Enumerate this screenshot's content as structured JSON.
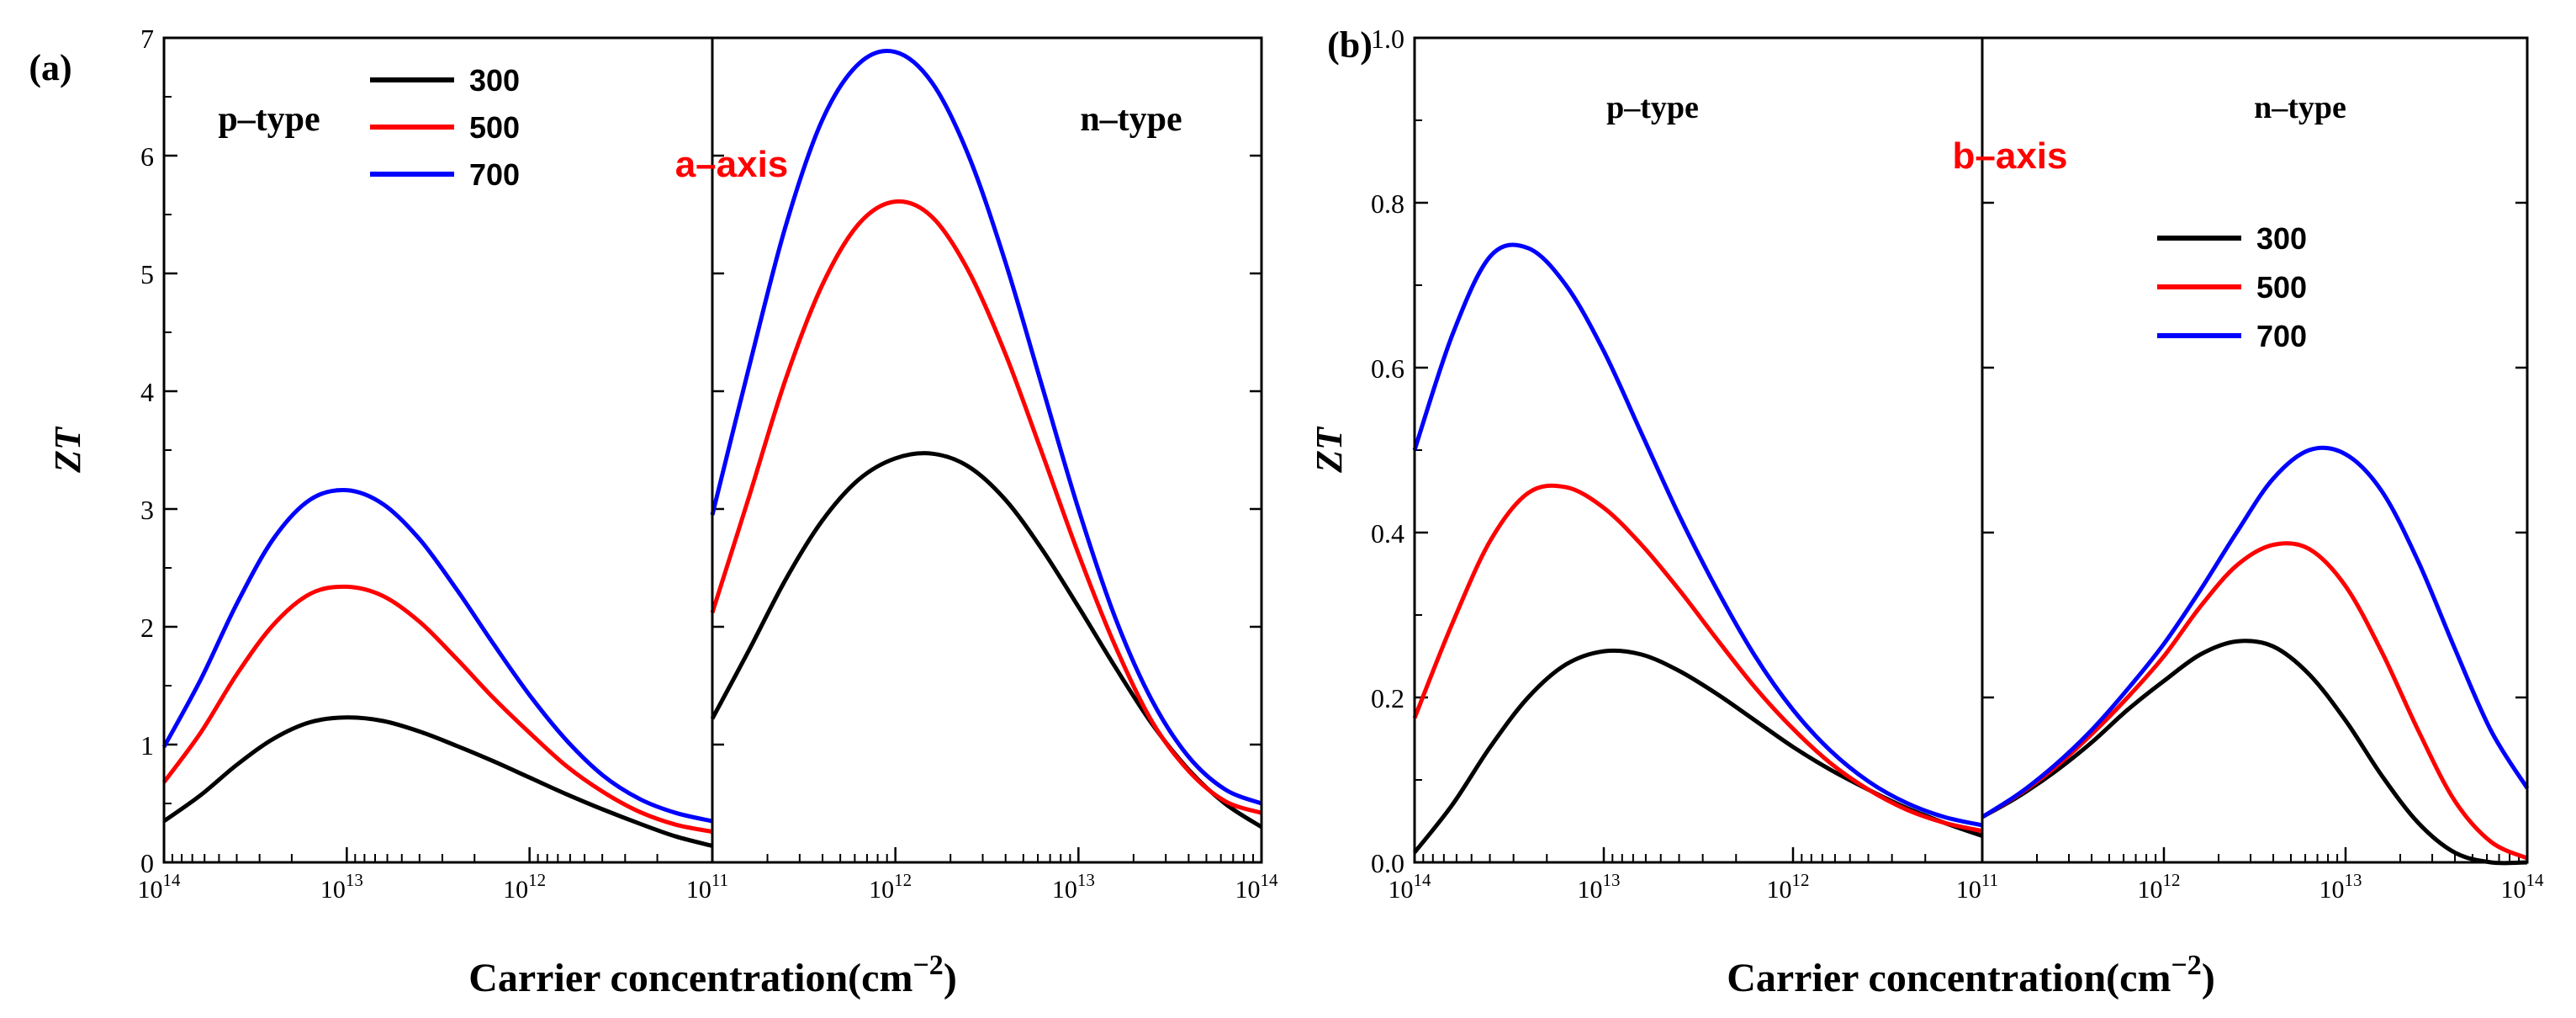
{
  "figure": {
    "panel_a_label": "(a)",
    "panel_b_label": "(b)"
  },
  "chart_data": [
    {
      "type": "line",
      "panel": "(a)",
      "axis_annotation": "a–axis",
      "ylabel": "ZT",
      "xlabel": "Carrier concentration(cm",
      "xlabel_sup": "−2",
      "ylim": [
        0,
        7
      ],
      "yticks": [
        "0",
        "1",
        "2",
        "3",
        "4",
        "5",
        "6",
        "7"
      ],
      "xscale": "log",
      "legend": {
        "placement": "top-left",
        "entries": [
          "300",
          "500",
          "700"
        ]
      },
      "subpanels": [
        {
          "label": "p–type",
          "xticks": [
            {
              "base": "10",
              "exp": "14"
            },
            {
              "base": "10",
              "exp": "13"
            },
            {
              "base": "10",
              "exp": "12"
            },
            {
              "base": "10",
              "exp": "11"
            }
          ],
          "series": [
            {
              "name": "300",
              "color": "#000000",
              "x": [
                0,
                0.2,
                0.4,
                0.6,
                0.8,
                1.0,
                1.2,
                1.4,
                1.6,
                1.8,
                2.0,
                2.2,
                2.4,
                2.6,
                2.8,
                3.0
              ],
              "y": [
                0.35,
                0.57,
                0.83,
                1.05,
                1.19,
                1.23,
                1.2,
                1.11,
                0.99,
                0.86,
                0.72,
                0.58,
                0.45,
                0.33,
                0.22,
                0.14
              ]
            },
            {
              "name": "500",
              "color": "#ff0000",
              "x": [
                0,
                0.2,
                0.4,
                0.6,
                0.8,
                1.0,
                1.2,
                1.4,
                1.6,
                1.8,
                2.0,
                2.2,
                2.4,
                2.6,
                2.8,
                3.0
              ],
              "y": [
                0.68,
                1.1,
                1.6,
                2.02,
                2.28,
                2.34,
                2.26,
                2.04,
                1.73,
                1.4,
                1.1,
                0.82,
                0.6,
                0.43,
                0.32,
                0.26
              ]
            },
            {
              "name": "700",
              "color": "#0000ff",
              "x": [
                0,
                0.2,
                0.4,
                0.6,
                0.8,
                1.0,
                1.2,
                1.4,
                1.6,
                1.8,
                2.0,
                2.2,
                2.4,
                2.6,
                2.8,
                3.0
              ],
              "y": [
                0.98,
                1.55,
                2.2,
                2.75,
                3.08,
                3.16,
                3.04,
                2.74,
                2.32,
                1.86,
                1.42,
                1.04,
                0.74,
                0.54,
                0.42,
                0.35
              ]
            }
          ]
        },
        {
          "label": "n–type",
          "xticks": [
            {
              "base": "10",
              "exp": "11"
            },
            {
              "base": "10",
              "exp": "12"
            },
            {
              "base": "10",
              "exp": "13"
            },
            {
              "base": "10",
              "exp": "14"
            }
          ],
          "series": [
            {
              "name": "300",
              "color": "#000000",
              "x": [
                0,
                0.2,
                0.4,
                0.6,
                0.8,
                1.0,
                1.2,
                1.4,
                1.6,
                1.8,
                2.0,
                2.2,
                2.4,
                2.6,
                2.8,
                3.0
              ],
              "y": [
                1.22,
                1.8,
                2.4,
                2.9,
                3.25,
                3.43,
                3.47,
                3.36,
                3.08,
                2.66,
                2.17,
                1.66,
                1.18,
                0.79,
                0.5,
                0.3
              ]
            },
            {
              "name": "500",
              "color": "#ff0000",
              "x": [
                0,
                0.2,
                0.4,
                0.6,
                0.8,
                1.0,
                1.2,
                1.4,
                1.6,
                1.8,
                2.0,
                2.2,
                2.4,
                2.6,
                2.8,
                3.0
              ],
              "y": [
                2.12,
                3.1,
                4.1,
                4.9,
                5.42,
                5.61,
                5.48,
                5.02,
                4.32,
                3.48,
                2.62,
                1.84,
                1.2,
                0.78,
                0.52,
                0.42
              ]
            },
            {
              "name": "700",
              "color": "#0000ff",
              "x": [
                0,
                0.2,
                0.4,
                0.6,
                0.8,
                1.0,
                1.2,
                1.4,
                1.6,
                1.8,
                2.0,
                2.2,
                2.4,
                2.6,
                2.8,
                3.0
              ],
              "y": [
                2.95,
                4.2,
                5.4,
                6.3,
                6.78,
                6.88,
                6.62,
                6.0,
                5.1,
                4.05,
                3.0,
                2.08,
                1.38,
                0.9,
                0.62,
                0.5
              ]
            }
          ]
        }
      ]
    },
    {
      "type": "line",
      "panel": "(b)",
      "axis_annotation": "b–axis",
      "ylabel": "ZT",
      "xlabel": "Carrier concentration(cm",
      "xlabel_sup": "−2",
      "ylim": [
        0,
        1.0
      ],
      "yticks": [
        "0.0",
        "0.2",
        "0.4",
        "0.6",
        "0.8",
        "1.0"
      ],
      "xscale": "log",
      "legend": {
        "placement": "right (n–type side)",
        "entries": [
          "300",
          "500",
          "700"
        ]
      },
      "subpanels": [
        {
          "label": "p–type",
          "xticks": [
            {
              "base": "10",
              "exp": "14"
            },
            {
              "base": "10",
              "exp": "13"
            },
            {
              "base": "10",
              "exp": "12"
            },
            {
              "base": "10",
              "exp": "11"
            }
          ],
          "series": [
            {
              "name": "300",
              "color": "#000000",
              "x": [
                0,
                0.2,
                0.4,
                0.6,
                0.8,
                1.0,
                1.2,
                1.4,
                1.6,
                1.8,
                2.0,
                2.2,
                2.4,
                2.6,
                2.8,
                3.0
              ],
              "y": [
                0.012,
                0.07,
                0.14,
                0.2,
                0.24,
                0.256,
                0.252,
                0.232,
                0.204,
                0.172,
                0.14,
                0.112,
                0.088,
                0.066,
                0.048,
                0.032
              ]
            },
            {
              "name": "500",
              "color": "#ff0000",
              "x": [
                0,
                0.2,
                0.4,
                0.6,
                0.8,
                1.0,
                1.2,
                1.4,
                1.6,
                1.8,
                2.0,
                2.2,
                2.4,
                2.6,
                2.8,
                3.0
              ],
              "y": [
                0.175,
                0.29,
                0.39,
                0.448,
                0.455,
                0.43,
                0.385,
                0.33,
                0.27,
                0.212,
                0.162,
                0.12,
                0.088,
                0.064,
                0.048,
                0.038
              ]
            },
            {
              "name": "700",
              "color": "#0000ff",
              "x": [
                0,
                0.2,
                0.4,
                0.6,
                0.8,
                1.0,
                1.2,
                1.4,
                1.6,
                1.8,
                2.0,
                2.2,
                2.4,
                2.6,
                2.8,
                3.0
              ],
              "y": [
                0.5,
                0.64,
                0.735,
                0.745,
                0.7,
                0.62,
                0.52,
                0.42,
                0.33,
                0.25,
                0.185,
                0.135,
                0.098,
                0.072,
                0.055,
                0.045
              ]
            }
          ]
        },
        {
          "label": "n–type",
          "xticks": [
            {
              "base": "10",
              "exp": "11"
            },
            {
              "base": "10",
              "exp": "12"
            },
            {
              "base": "10",
              "exp": "13"
            },
            {
              "base": "10",
              "exp": "14"
            }
          ],
          "series": [
            {
              "name": "300",
              "color": "#000000",
              "x": [
                0,
                0.2,
                0.4,
                0.6,
                0.8,
                1.0,
                1.2,
                1.4,
                1.6,
                1.8,
                2.0,
                2.2,
                2.4,
                2.6,
                2.8,
                3.0
              ],
              "y": [
                0.055,
                0.08,
                0.11,
                0.145,
                0.185,
                0.22,
                0.252,
                0.268,
                0.262,
                0.228,
                0.172,
                0.105,
                0.048,
                0.012,
                0.0,
                0.0
              ]
            },
            {
              "name": "500",
              "color": "#ff0000",
              "x": [
                0,
                0.2,
                0.4,
                0.6,
                0.8,
                1.0,
                1.2,
                1.4,
                1.6,
                1.8,
                2.0,
                2.2,
                2.4,
                2.6,
                2.8,
                3.0
              ],
              "y": [
                0.055,
                0.082,
                0.115,
                0.155,
                0.2,
                0.25,
                0.31,
                0.36,
                0.385,
                0.38,
                0.335,
                0.255,
                0.16,
                0.075,
                0.025,
                0.005
              ]
            },
            {
              "name": "700",
              "color": "#0000ff",
              "x": [
                0,
                0.2,
                0.4,
                0.6,
                0.8,
                1.0,
                1.2,
                1.4,
                1.6,
                1.8,
                2.0,
                2.2,
                2.4,
                2.6,
                2.8,
                3.0
              ],
              "y": [
                0.055,
                0.083,
                0.118,
                0.16,
                0.21,
                0.265,
                0.33,
                0.4,
                0.465,
                0.5,
                0.495,
                0.45,
                0.365,
                0.26,
                0.16,
                0.09
              ]
            }
          ]
        }
      ]
    }
  ]
}
